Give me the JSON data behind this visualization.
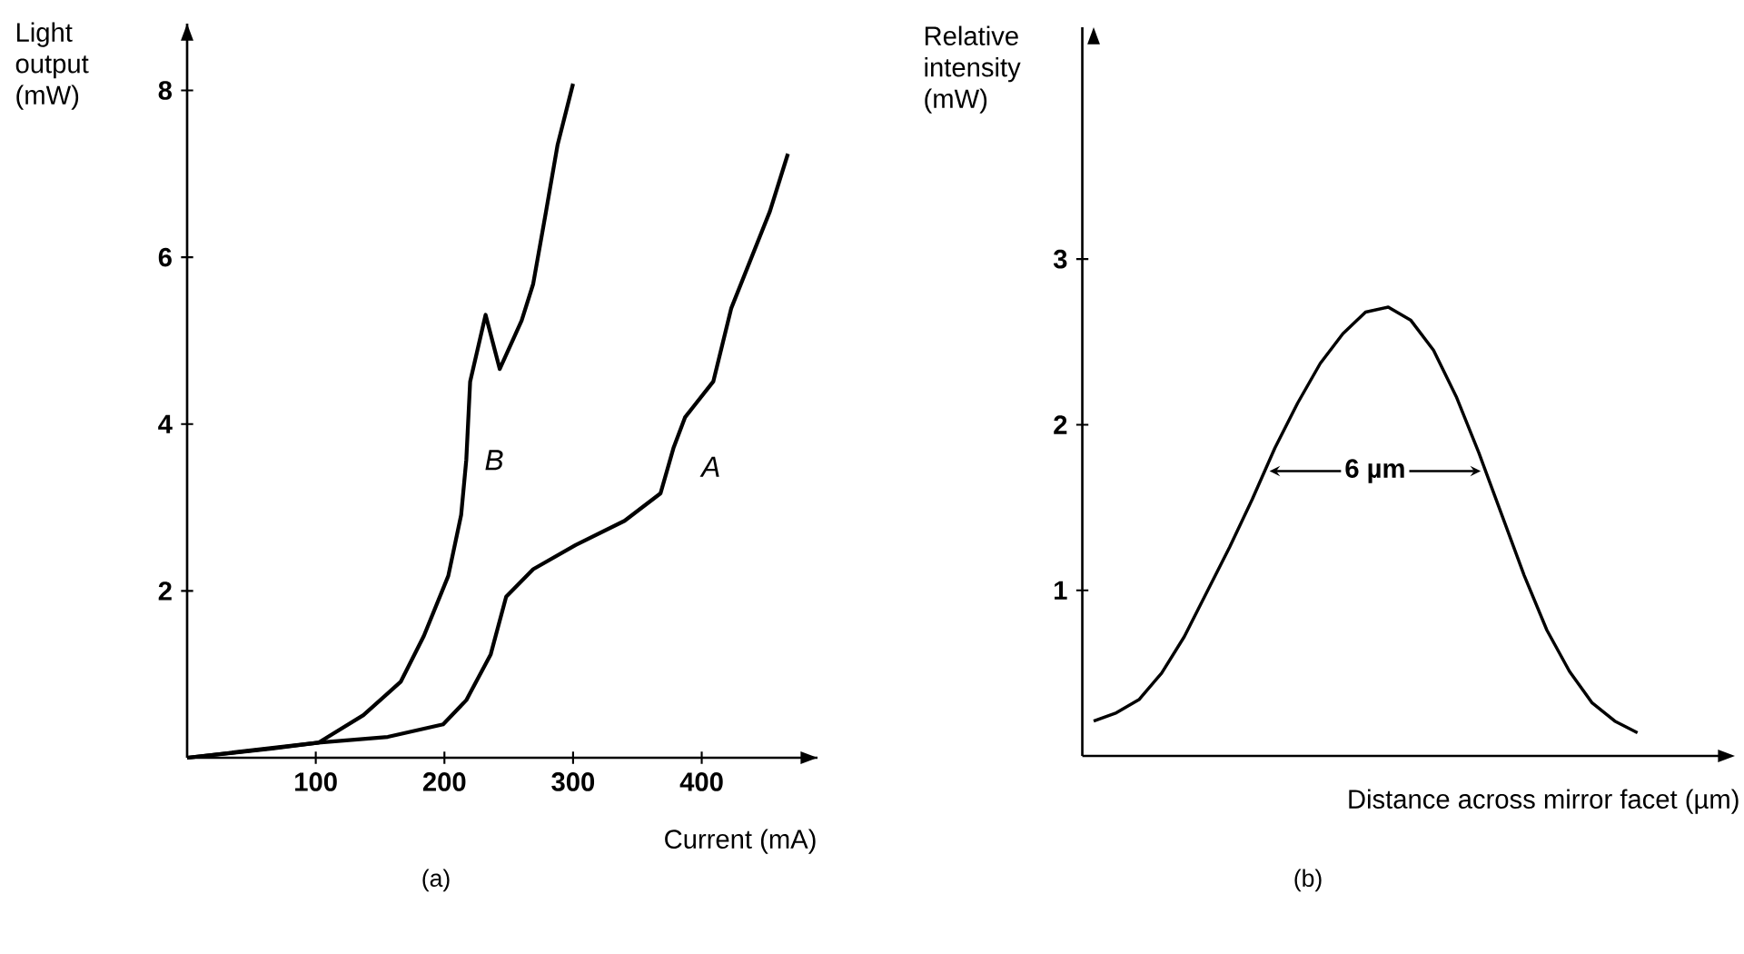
{
  "chart_data": [
    {
      "type": "line",
      "title": "(a)",
      "xlabel": "Current (mA)",
      "ylabel": "Light output (mW)",
      "xlim": [
        0,
        490
      ],
      "ylim": [
        0,
        8.8
      ],
      "xticks": [
        100,
        200,
        300,
        400
      ],
      "yticks": [
        2,
        4,
        6,
        8
      ],
      "series": [
        {
          "name": "B",
          "color": "#000000",
          "x": [
            0,
            66,
            102,
            137,
            166,
            184,
            203,
            213,
            217,
            220,
            232,
            243,
            260,
            269,
            279,
            288,
            300
          ],
          "values": [
            0,
            0.11,
            0.18,
            0.51,
            0.91,
            1.46,
            2.18,
            2.91,
            3.57,
            4.51,
            5.31,
            4.66,
            5.24,
            5.68,
            6.55,
            7.35,
            8.08
          ]
        },
        {
          "name": "A",
          "color": "#000000",
          "x": [
            0,
            102,
            156,
            199,
            217,
            236,
            248,
            269,
            302,
            340,
            368,
            378,
            387,
            409,
            423,
            453,
            467
          ],
          "values": [
            0,
            0.18,
            0.25,
            0.4,
            0.69,
            1.24,
            1.93,
            2.26,
            2.55,
            2.84,
            3.17,
            3.71,
            4.08,
            4.51,
            5.39,
            6.55,
            7.24
          ]
        }
      ]
    },
    {
      "type": "line",
      "title": "(b)",
      "xlabel": "Distance across mirror facet (µm)",
      "ylabel": "Relative intensity (mW)",
      "ylim": [
        0,
        4.4
      ],
      "yticks": [
        1,
        2,
        3
      ],
      "categories": [
        null,
        null,
        null,
        null,
        null,
        null,
        null,
        null,
        null,
        null,
        null,
        null,
        null,
        null,
        null,
        null,
        null,
        null,
        null,
        null,
        null,
        null,
        null,
        null,
        null
      ],
      "series": [
        {
          "color": "#000000",
          "values": [
            0.21,
            0.26,
            0.34,
            0.5,
            0.72,
            0.99,
            1.26,
            1.55,
            1.86,
            2.13,
            2.37,
            2.55,
            2.68,
            2.71,
            2.63,
            2.45,
            2.17,
            1.83,
            1.46,
            1.09,
            0.76,
            0.51,
            0.32,
            0.21,
            0.14
          ]
        }
      ],
      "annotations": [
        {
          "text": "6 µm",
          "y": 1.72
        }
      ]
    }
  ]
}
